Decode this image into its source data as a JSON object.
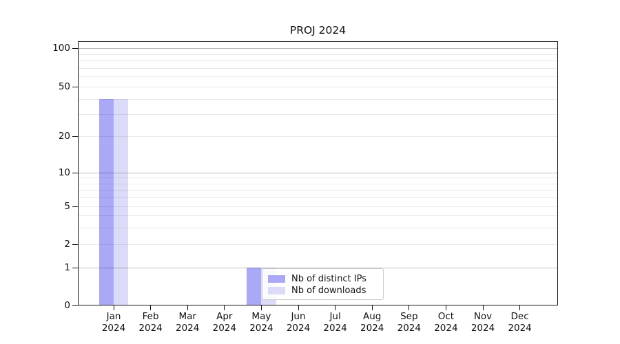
{
  "chart_data": {
    "type": "bar",
    "title": "PROJ 2024",
    "categories": [
      "Jan 2024",
      "Feb 2024",
      "Mar 2024",
      "Apr 2024",
      "May 2024",
      "Jun 2024",
      "Jul 2024",
      "Aug 2024",
      "Sep 2024",
      "Oct 2024",
      "Nov 2024",
      "Dec 2024"
    ],
    "series": [
      {
        "name": "Nb of distinct IPs",
        "color": "#a9a9f7",
        "values": [
          40,
          0,
          0,
          0,
          1,
          0,
          0,
          0,
          0,
          0,
          0,
          0
        ]
      },
      {
        "name": "Nb of downloads",
        "color": "#dcdcfa",
        "values": [
          40,
          0,
          0,
          0,
          1,
          0,
          0,
          0,
          0,
          0,
          0,
          0
        ]
      }
    ],
    "y_ticks": [
      100,
      50,
      20,
      10,
      5,
      2,
      1,
      0
    ],
    "y_scale": "symlog",
    "ylim": [
      0,
      113
    ],
    "xlabel": "",
    "ylabel": "",
    "grid": "on",
    "legend_position": "lower-center"
  }
}
